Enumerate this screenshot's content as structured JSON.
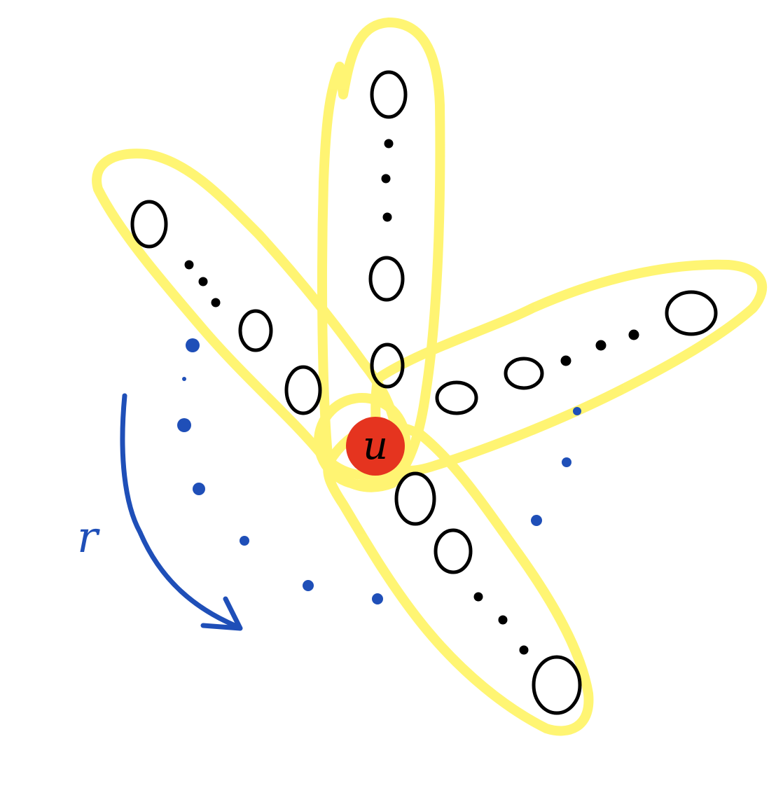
{
  "center_label": "u",
  "side_label": "r",
  "colors": {
    "highlight": "#fff35a",
    "vertex_stroke": "#000000",
    "center_fill": "#e5341f",
    "annotation": "#1f4fb8",
    "background": "#ffffff"
  },
  "icons": {
    "rotation_arrow": "curved-arrow-icon"
  }
}
